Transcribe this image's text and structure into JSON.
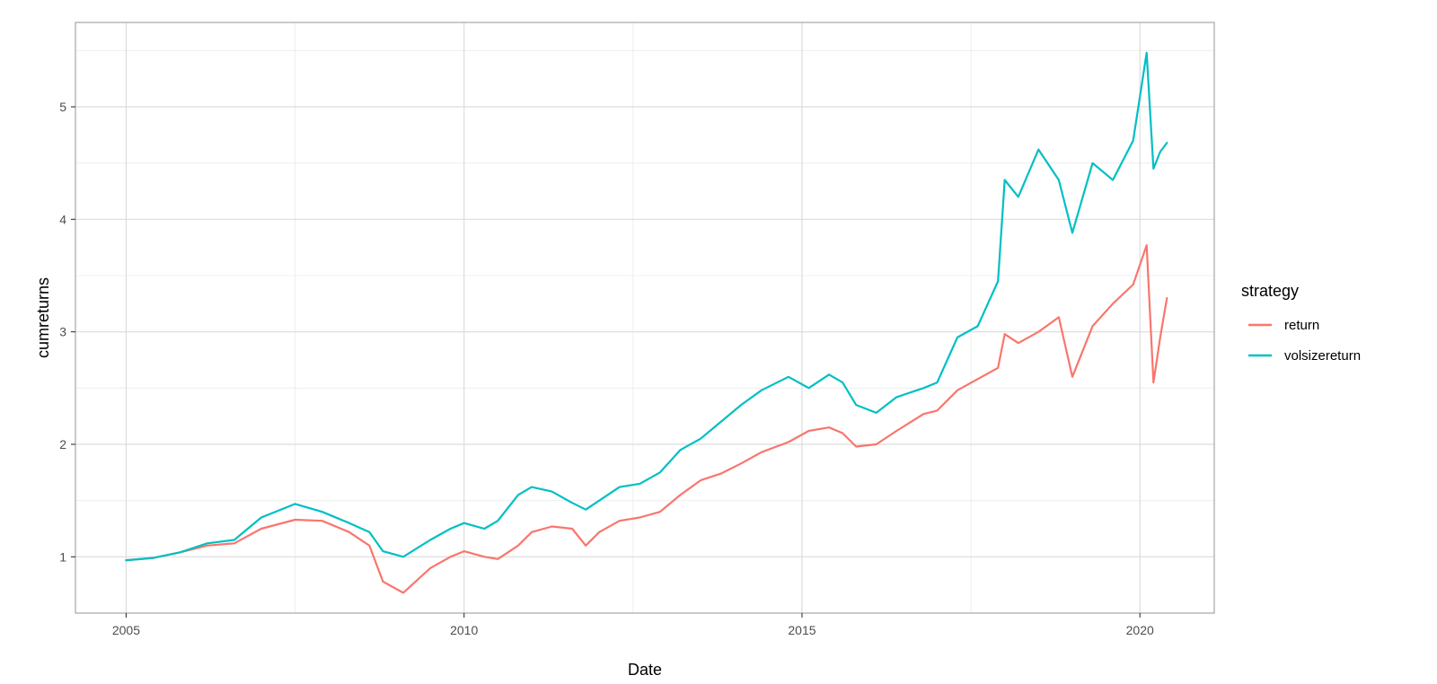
{
  "chart_data": {
    "type": "line",
    "title": "",
    "xlabel": "Date",
    "ylabel": "cumreturns",
    "x_ticks": [
      "2005",
      "2010",
      "2015",
      "2020"
    ],
    "y_ticks": [
      "1",
      "2",
      "3",
      "4",
      "5"
    ],
    "xlim": [
      2004.25,
      2021.1
    ],
    "ylim": [
      0.5,
      5.75
    ],
    "grid": true,
    "legend": {
      "title": "strategy",
      "placement": "right"
    },
    "series": [
      {
        "name": "return",
        "color": "#F8766D",
        "x": [
          2005.0,
          2005.4,
          2005.8,
          2006.2,
          2006.6,
          2007.0,
          2007.5,
          2007.9,
          2008.3,
          2008.6,
          2008.8,
          2009.1,
          2009.5,
          2009.8,
          2010.0,
          2010.3,
          2010.5,
          2010.8,
          2011.0,
          2011.3,
          2011.6,
          2011.8,
          2012.0,
          2012.3,
          2012.6,
          2012.9,
          2013.2,
          2013.5,
          2013.8,
          2014.1,
          2014.4,
          2014.8,
          2015.1,
          2015.4,
          2015.6,
          2015.8,
          2016.1,
          2016.4,
          2016.8,
          2017.0,
          2017.3,
          2017.6,
          2017.9,
          2018.0,
          2018.2,
          2018.5,
          2018.8,
          2019.0,
          2019.3,
          2019.6,
          2019.9,
          2020.1,
          2020.2,
          2020.3,
          2020.4
        ],
        "y": [
          0.97,
          0.99,
          1.04,
          1.1,
          1.12,
          1.25,
          1.33,
          1.32,
          1.22,
          1.1,
          0.78,
          0.68,
          0.9,
          1.0,
          1.05,
          1.0,
          0.98,
          1.1,
          1.22,
          1.27,
          1.25,
          1.1,
          1.22,
          1.32,
          1.35,
          1.4,
          1.55,
          1.68,
          1.74,
          1.83,
          1.93,
          2.02,
          2.12,
          2.15,
          2.1,
          1.98,
          2.0,
          2.12,
          2.27,
          2.3,
          2.48,
          2.58,
          2.68,
          2.98,
          2.9,
          3.0,
          3.13,
          2.6,
          3.05,
          3.25,
          3.42,
          3.77,
          2.55,
          2.95,
          3.3
        ]
      },
      {
        "name": "volsizereturn",
        "color": "#00BFC4",
        "x": [
          2005.0,
          2005.4,
          2005.8,
          2006.2,
          2006.6,
          2007.0,
          2007.5,
          2007.9,
          2008.3,
          2008.6,
          2008.8,
          2009.1,
          2009.5,
          2009.8,
          2010.0,
          2010.3,
          2010.5,
          2010.8,
          2011.0,
          2011.3,
          2011.6,
          2011.8,
          2012.0,
          2012.3,
          2012.6,
          2012.9,
          2013.2,
          2013.5,
          2013.8,
          2014.1,
          2014.4,
          2014.8,
          2015.1,
          2015.4,
          2015.6,
          2015.8,
          2016.1,
          2016.4,
          2016.8,
          2017.0,
          2017.3,
          2017.6,
          2017.9,
          2018.0,
          2018.2,
          2018.5,
          2018.8,
          2019.0,
          2019.3,
          2019.6,
          2019.9,
          2020.1,
          2020.2,
          2020.3,
          2020.4
        ],
        "y": [
          0.97,
          0.99,
          1.04,
          1.12,
          1.15,
          1.35,
          1.47,
          1.4,
          1.3,
          1.22,
          1.05,
          1.0,
          1.15,
          1.25,
          1.3,
          1.25,
          1.32,
          1.55,
          1.62,
          1.58,
          1.48,
          1.42,
          1.5,
          1.62,
          1.65,
          1.75,
          1.95,
          2.05,
          2.2,
          2.35,
          2.48,
          2.6,
          2.5,
          2.62,
          2.55,
          2.35,
          2.28,
          2.42,
          2.5,
          2.55,
          2.95,
          3.05,
          3.45,
          4.35,
          4.2,
          4.62,
          4.35,
          3.88,
          4.5,
          4.35,
          4.7,
          5.48,
          4.45,
          4.6,
          4.68
        ]
      }
    ]
  }
}
